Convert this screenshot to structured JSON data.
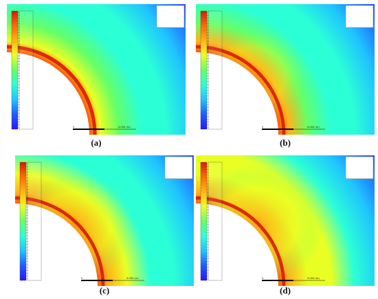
{
  "figure": {
    "panels": [
      {
        "id": "a",
        "caption": "(a)",
        "stops": [
          "#2a17ff",
          "#1e5cff",
          "#20c4ff",
          "#2bffd6",
          "#66ff66",
          "#e9ff24",
          "#ffb31a",
          "#ff6a0d",
          "#d81b08"
        ],
        "hotspot": {
          "ring": 0.85,
          "blob": 0.0
        },
        "scalebar_left": "0",
        "scalebar_right": "0.003 (m)"
      },
      {
        "id": "b",
        "caption": "(b)",
        "stops": [
          "#2a17ff",
          "#1e5cff",
          "#20c4ff",
          "#2bffd6",
          "#66ff66",
          "#e9ff24",
          "#ffb31a",
          "#ff6a0d",
          "#d81b08"
        ],
        "hotspot": {
          "ring": 0.8,
          "blob": 0.55
        },
        "scalebar_left": "0",
        "scalebar_right": "0.003 (m)"
      },
      {
        "id": "c",
        "caption": "(c)",
        "stops": [
          "#2a17ff",
          "#1e5cff",
          "#20c4ff",
          "#2bffd6",
          "#66ff66",
          "#e9ff24",
          "#ffb31a",
          "#ff6a0d",
          "#d81b08"
        ],
        "hotspot": {
          "ring": 0.8,
          "blob": 0.75
        },
        "scalebar_left": "0",
        "scalebar_right": "0.003 (m)"
      },
      {
        "id": "d",
        "caption": "(d)",
        "stops": [
          "#2a17ff",
          "#1e5cff",
          "#20c4ff",
          "#2bffd6",
          "#66ff66",
          "#e9ff24",
          "#ffb31a",
          "#ff6a0d",
          "#d81b08"
        ],
        "hotspot": {
          "ring": 0.8,
          "blob": 0.95
        },
        "scalebar_left": "0",
        "scalebar_right": "0.003 (m)"
      }
    ]
  }
}
